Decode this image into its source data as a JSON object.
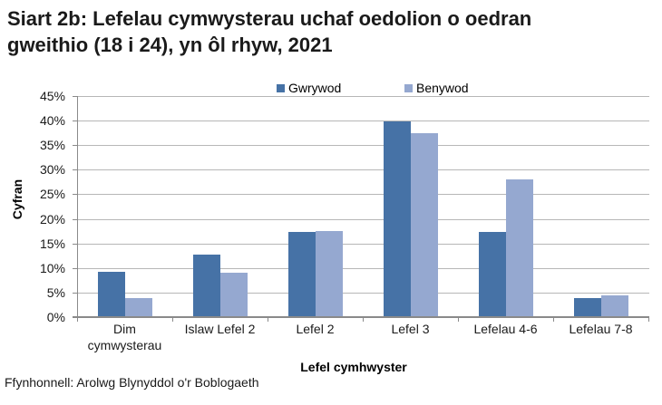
{
  "title_line1": "Siart 2b: Lefelau cymwysterau uchaf oedolion o oedran",
  "title_line2": "gweithio (18 i 24), yn ôl rhyw, 2021",
  "legend": [
    {
      "label": "Gwrywod",
      "color": "#4672A6"
    },
    {
      "label": "Benywod",
      "color": "#95A8D0"
    }
  ],
  "y_axis": {
    "title": "Cyfran",
    "ticks": [
      "0%",
      "5%",
      "10%",
      "15%",
      "20%",
      "25%",
      "30%",
      "35%",
      "40%",
      "45%"
    ]
  },
  "x_axis": {
    "title": "Lefel cymhwyster",
    "categories": [
      "Dim cymwysterau",
      "Islaw Lefel 2",
      "Lefel 2",
      "Lefel 3",
      "Lefelau 4-6",
      "Lefelau 7-8"
    ]
  },
  "source": "Ffynhonnell: Arolwg Blynyddol o'r Boblogaeth",
  "chart_data": {
    "type": "bar",
    "title": "Siart 2b: Lefelau cymwysterau uchaf oedolion o oedran gweithio (18 i 24), yn ôl rhyw, 2021",
    "categories": [
      "Dim cymwysterau",
      "Islaw Lefel 2",
      "Lefel 2",
      "Lefel 3",
      "Lefelau 4-6",
      "Lefelau 7-8"
    ],
    "series": [
      {
        "name": "Gwrywod",
        "color": "#4672A6",
        "values": [
          9.3,
          12.7,
          17.3,
          39.8,
          17.3,
          3.8
        ]
      },
      {
        "name": "Benywod",
        "color": "#95A8D0",
        "values": [
          3.8,
          9.0,
          17.5,
          37.4,
          28.0,
          4.4
        ]
      }
    ],
    "xlabel": "Lefel cymhwyster",
    "ylabel": "Cyfran",
    "ylim": [
      0,
      45
    ],
    "y_tick_step": 5,
    "y_format": "percent",
    "grid": true,
    "legend_position": "top"
  }
}
